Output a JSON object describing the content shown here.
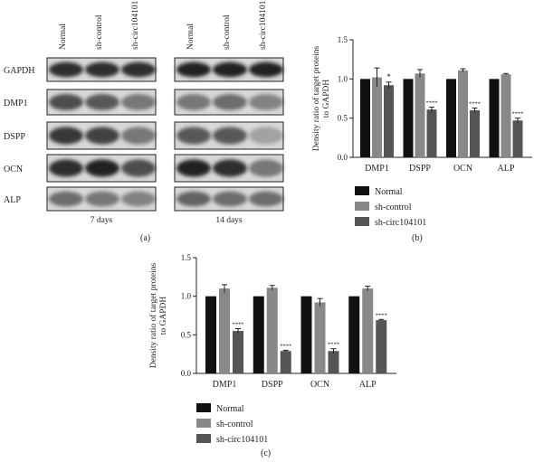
{
  "blot": {
    "lanes": [
      "Normal",
      "sh-control",
      "sh-circ104101"
    ],
    "proteins": [
      "GAPDH",
      "DMP1",
      "DSPP",
      "OCN",
      "ALP"
    ],
    "groups": [
      {
        "caption": "7 days"
      },
      {
        "caption": "14 days"
      }
    ]
  },
  "panel_labels": {
    "a": "(a)",
    "b": "(b)",
    "c": "(c)"
  },
  "significance": {
    "star": "*",
    "quad": "****"
  },
  "chart_data": [
    {
      "type": "bar",
      "panel": "(b)",
      "categories": [
        "DMP1",
        "DSPP",
        "OCN",
        "ALP"
      ],
      "ylabel": "Density ratio of target proteins to GAPDH",
      "ylim": [
        0,
        1.5
      ],
      "yticks": [
        "0.0",
        "0.5",
        "1.0",
        "1.5"
      ],
      "legend": "below",
      "series": [
        {
          "name": "Normal",
          "color": "#111111",
          "values": [
            1.0,
            1.0,
            1.0,
            1.0
          ],
          "errors": [
            0,
            0,
            0,
            0
          ],
          "sig": [
            "",
            "",
            "",
            ""
          ]
        },
        {
          "name": "sh-control",
          "color": "#888888",
          "values": [
            1.02,
            1.07,
            1.11,
            1.06
          ],
          "errors": [
            0.12,
            0.05,
            0.02,
            0.01
          ],
          "sig": [
            "",
            "",
            "",
            ""
          ]
        },
        {
          "name": "sh-circ104101",
          "color": "#555555",
          "values": [
            0.92,
            0.61,
            0.6,
            0.47
          ],
          "errors": [
            0.04,
            0.03,
            0.03,
            0.03
          ],
          "sig": [
            "*",
            "****",
            "****",
            "****"
          ]
        }
      ]
    },
    {
      "type": "bar",
      "panel": "(c)",
      "categories": [
        "DMP1",
        "DSPP",
        "OCN",
        "ALP"
      ],
      "ylabel": "Density ratio of target proteins to GAPDH",
      "ylim": [
        0,
        1.5
      ],
      "yticks": [
        "0.0",
        "0.5",
        "1.0",
        "1.5"
      ],
      "legend": "below",
      "series": [
        {
          "name": "Normal",
          "color": "#111111",
          "values": [
            1.0,
            1.0,
            1.0,
            1.0
          ],
          "errors": [
            0,
            0,
            0,
            0
          ],
          "sig": [
            "",
            "",
            "",
            ""
          ]
        },
        {
          "name": "sh-control",
          "color": "#888888",
          "values": [
            1.1,
            1.11,
            0.92,
            1.1
          ],
          "errors": [
            0.05,
            0.03,
            0.05,
            0.03
          ],
          "sig": [
            "",
            "",
            "",
            ""
          ]
        },
        {
          "name": "sh-circ104101",
          "color": "#555555",
          "values": [
            0.55,
            0.29,
            0.29,
            0.69
          ],
          "errors": [
            0.03,
            0.01,
            0.03,
            0.01
          ],
          "sig": [
            "****",
            "****",
            "****",
            "****"
          ]
        }
      ]
    }
  ]
}
